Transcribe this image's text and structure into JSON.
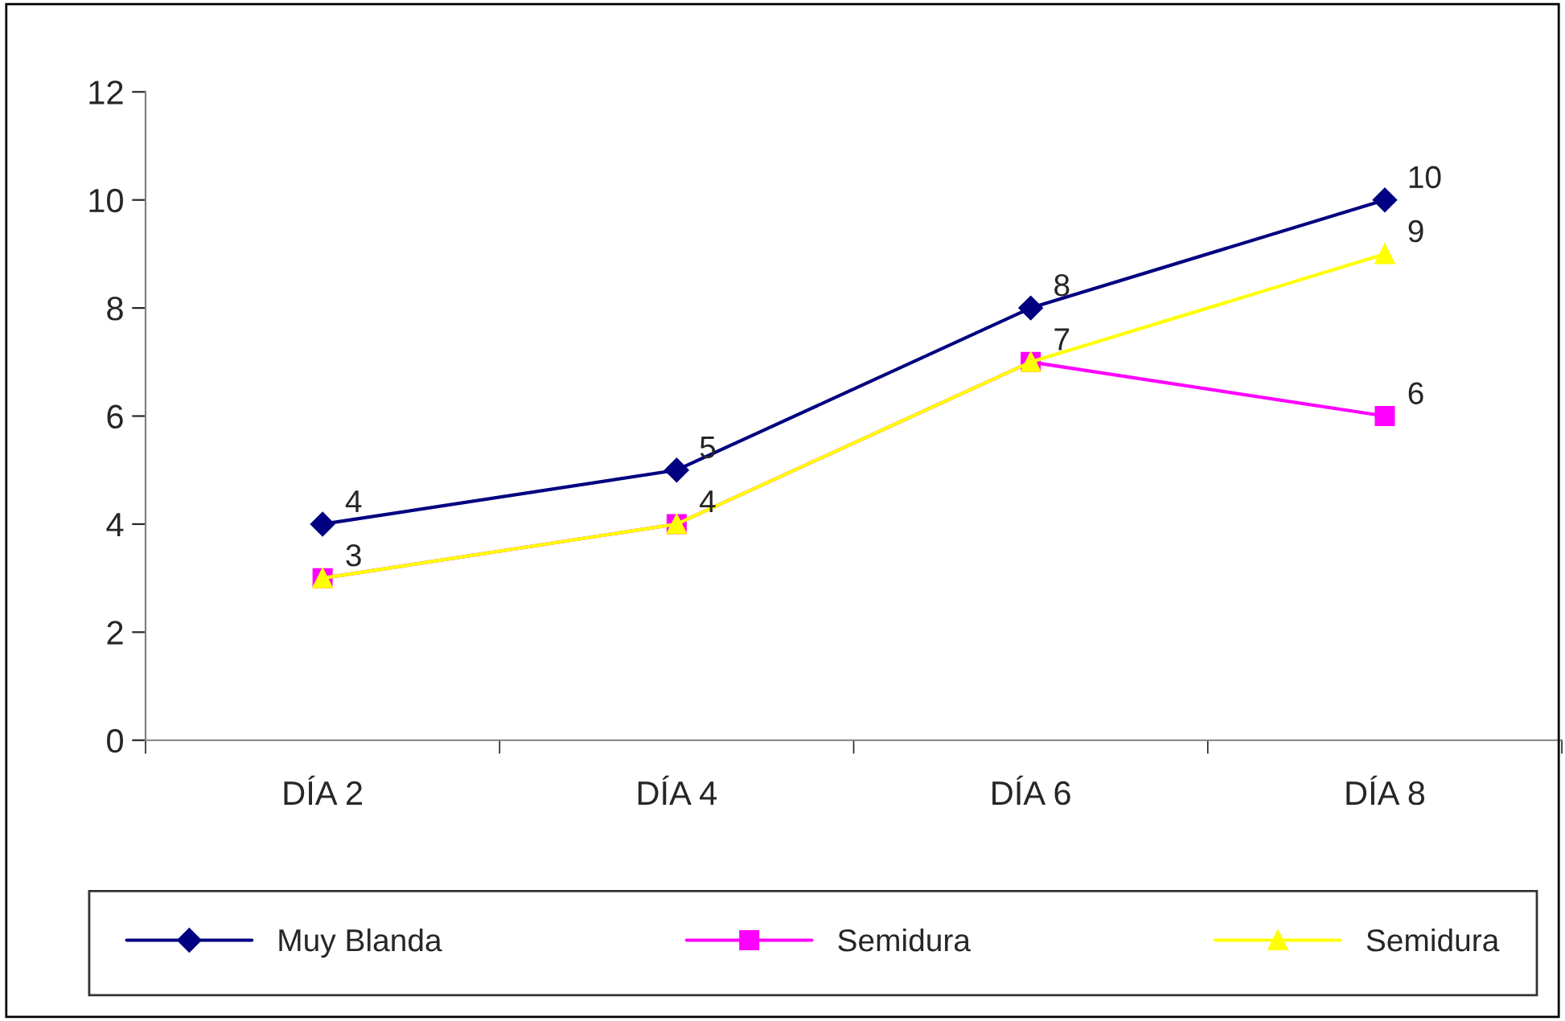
{
  "chart_data": {
    "type": "line",
    "categories": [
      "DÍA 2",
      "DÍA 4",
      "DÍA 6",
      "DÍA 8"
    ],
    "series": [
      {
        "name": "Muy Blanda",
        "color": "#000080",
        "marker": "diamond",
        "values": [
          4,
          5,
          8,
          10
        ],
        "value_labels": [
          "4",
          "5",
          "8",
          "10"
        ]
      },
      {
        "name": "Semidura",
        "color": "#ff00ff",
        "marker": "square",
        "values": [
          3,
          4,
          7,
          6
        ],
        "value_labels": [
          "3",
          "4",
          "7",
          "6"
        ]
      },
      {
        "name": "Semidura",
        "color": "#ffff00",
        "marker": "triangle",
        "values": [
          3,
          4,
          7,
          9
        ],
        "value_labels": [
          null,
          null,
          null,
          "9"
        ]
      }
    ],
    "ylim": [
      0,
      12
    ],
    "yticks": [
      0,
      2,
      4,
      6,
      8,
      10,
      12
    ],
    "grid": false,
    "legend": "bottom",
    "line_style": "solid"
  }
}
